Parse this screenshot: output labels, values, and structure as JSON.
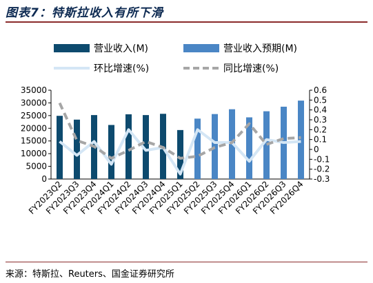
{
  "title": "图表7：特斯拉收入有所下滑",
  "source": "来源：特斯拉、Reuters、国金证券研究所",
  "colors": {
    "actual_bar": "#0d4a6e",
    "forecast_bar": "#4a86c5",
    "qoq_line": "#d4e6f5",
    "yoy_line": "#a6a6a6",
    "rule": "#8a2a2a"
  },
  "legend": {
    "actual": "营业收入(M)",
    "forecast": "营业收入预期(M)",
    "qoq": "环比增速(%)",
    "yoy": "同比增速(%)"
  },
  "chart_data": {
    "type": "bar",
    "categories": [
      "FY2023Q2",
      "FY2023Q3",
      "FY2023Q4",
      "FY2024Q1",
      "FY2024Q2",
      "FY2024Q3",
      "FY2024Q4",
      "FY2025Q1",
      "FY2025Q2",
      "FY2025Q3",
      "FY2025Q4",
      "FY2026Q1",
      "FY2026Q2",
      "FY2026Q3",
      "FY2026Q4"
    ],
    "series": [
      {
        "name": "营业收入(M)",
        "type": "bar",
        "axis": "left",
        "values": [
          24900,
          23400,
          25200,
          21300,
          25500,
          25200,
          25700,
          19300,
          null,
          null,
          null,
          null,
          null,
          null,
          null
        ]
      },
      {
        "name": "营业收入预期(M)",
        "type": "bar",
        "axis": "left",
        "values": [
          null,
          null,
          null,
          null,
          null,
          null,
          null,
          null,
          23800,
          25600,
          27500,
          24300,
          26700,
          28500,
          30900
        ]
      },
      {
        "name": "环比增速(%)",
        "type": "line",
        "axis": "right",
        "style": "solid",
        "values": [
          0.08,
          -0.06,
          0.08,
          -0.15,
          0.2,
          -0.01,
          0.02,
          -0.25,
          0.2,
          0.07,
          0.07,
          -0.12,
          0.1,
          0.07,
          0.08
        ]
      },
      {
        "name": "同比增速(%)",
        "type": "line",
        "axis": "right",
        "style": "dashed",
        "values": [
          0.47,
          0.09,
          0.03,
          -0.09,
          -0.01,
          0.08,
          0.02,
          -0.09,
          -0.07,
          0.02,
          0.07,
          0.26,
          0.05,
          0.11,
          0.12
        ]
      }
    ],
    "yleft": {
      "ticks": [
        0,
        5000,
        10000,
        15000,
        20000,
        25000,
        30000,
        35000
      ],
      "ylim": [
        0,
        35000
      ]
    },
    "yright": {
      "ticks": [
        -0.3,
        -0.2,
        -0.1,
        0,
        0.1,
        0.2,
        0.3,
        0.4,
        0.5,
        0.6
      ],
      "ylim": [
        -0.3,
        0.6
      ]
    },
    "legend_position": "top"
  }
}
